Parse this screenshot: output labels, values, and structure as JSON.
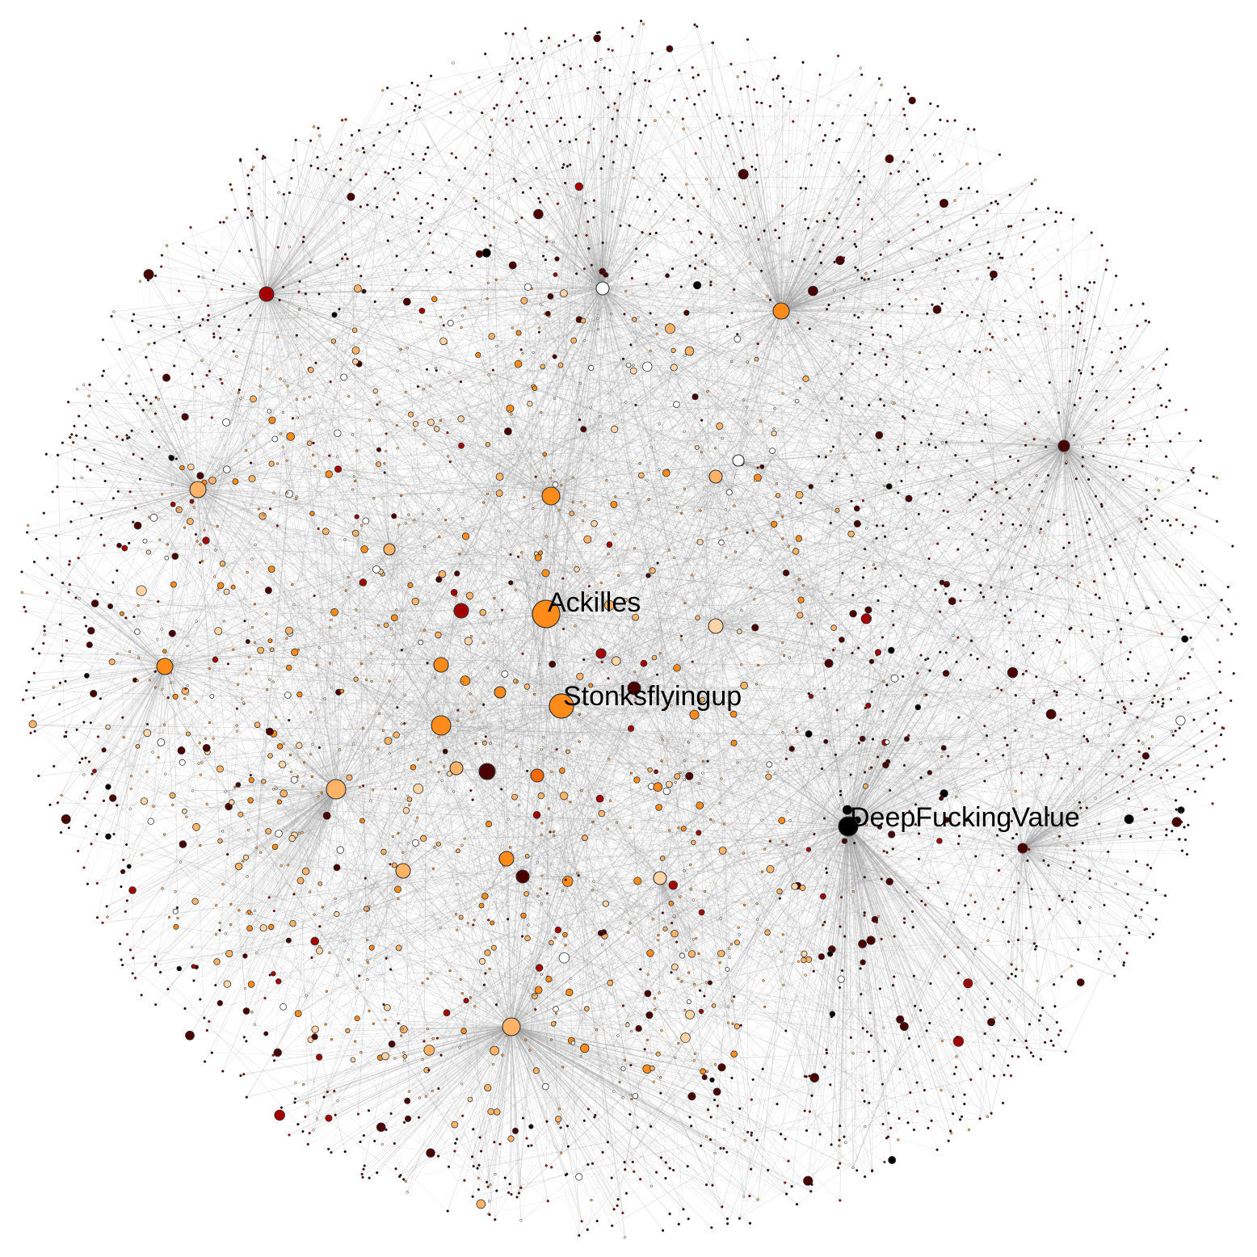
{
  "network": {
    "labels": {
      "ackilles": "Ackilles",
      "stonks": "Stonksflyingup",
      "dfv": "DeepFuckingValue"
    }
  },
  "colors": {
    "background": "#ffffff",
    "edge": "#9a9a9a",
    "node_stroke": "#333333",
    "palette": [
      "#000000",
      "#4a0000",
      "#a50000",
      "#ff6a00",
      "#ff8c1a",
      "#ffb366",
      "#ffd5a8",
      "#ffffff"
    ]
  }
}
